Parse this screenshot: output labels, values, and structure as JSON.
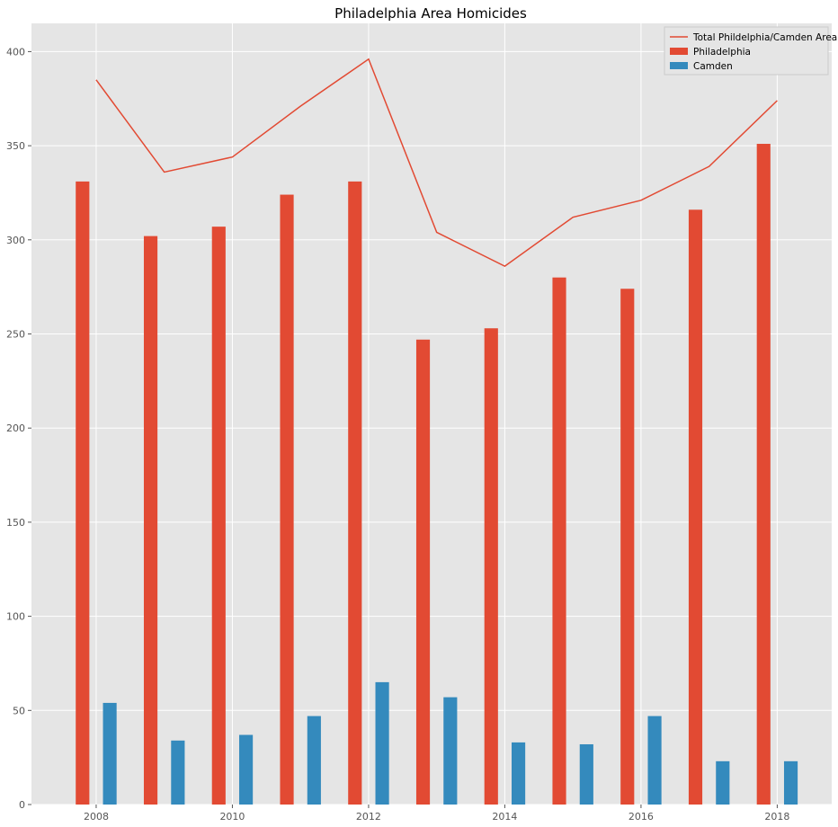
{
  "chart_data": {
    "type": "bar",
    "title": "Philadelphia Area Homicides",
    "xlabel": "",
    "ylabel": "",
    "x": [
      2008,
      2009,
      2010,
      2011,
      2012,
      2013,
      2014,
      2015,
      2016,
      2017,
      2018
    ],
    "xlim": [
      2007.05,
      2018.8
    ],
    "ylim": [
      0,
      415
    ],
    "x_ticks": [
      2008,
      2010,
      2012,
      2014,
      2016,
      2018
    ],
    "x_tick_labels": [
      "2008",
      "2010",
      "2012",
      "2014",
      "2016",
      "2018"
    ],
    "y_ticks": [
      0,
      50,
      100,
      150,
      200,
      250,
      300,
      350,
      400
    ],
    "y_tick_labels": [
      "0",
      "50",
      "100",
      "150",
      "200",
      "250",
      "300",
      "350",
      "400"
    ],
    "grid": true,
    "legend_position": "top-right",
    "series": [
      {
        "name": "Total Phildelphia/Camden Area",
        "kind": "line",
        "color": "#E24A33",
        "values": [
          385,
          336,
          344,
          371,
          396,
          304,
          286,
          312,
          321,
          339,
          374
        ]
      },
      {
        "name": "Philadelphia",
        "kind": "bar",
        "color": "#E24A33",
        "values": [
          331,
          302,
          307,
          324,
          331,
          247,
          253,
          280,
          274,
          316,
          351
        ]
      },
      {
        "name": "Camden",
        "kind": "bar",
        "color": "#348ABD",
        "values": [
          54,
          34,
          37,
          47,
          65,
          57,
          33,
          32,
          47,
          23,
          23
        ]
      }
    ],
    "colors": {
      "plot_background": "#E5E5E5",
      "grid": "#FFFFFF",
      "philadelphia": "#E24A33",
      "camden": "#348ABD"
    }
  }
}
